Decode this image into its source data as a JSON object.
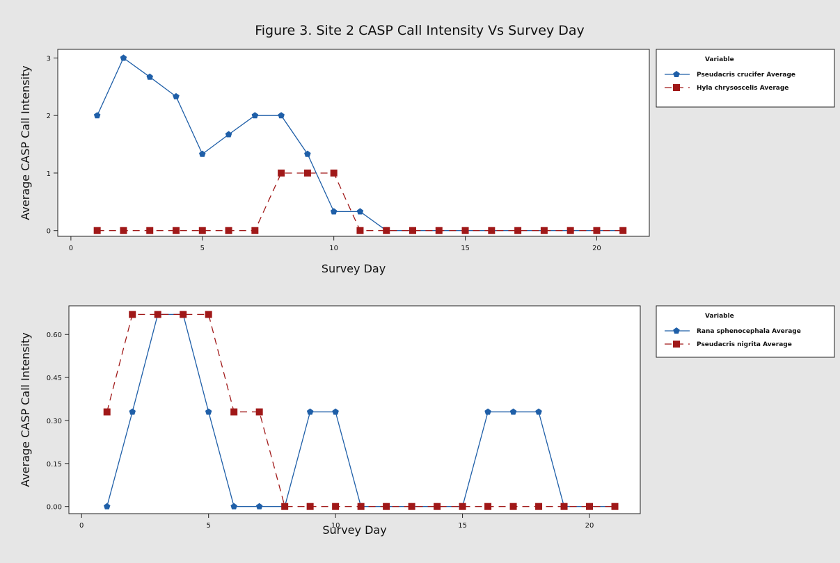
{
  "figure_title": "Figure 3. Site 2 CASP Call Intensity Vs Survey Day",
  "colors": {
    "series1": "#1f5fa8",
    "series2": "#a01818",
    "background": "#e6e6e6",
    "plot_bg": "#ffffff"
  },
  "chart_data": [
    {
      "type": "line",
      "title": "",
      "xlabel": "Survey Day",
      "ylabel": "Average CASP Call Intensity",
      "xlim": [
        -0.5,
        22
      ],
      "ylim": [
        -0.1,
        3.15
      ],
      "xticks": [
        0,
        5,
        10,
        15,
        20
      ],
      "yticks": [
        0,
        1,
        2,
        3
      ],
      "ytick_labels": [
        "0",
        "1",
        "2",
        "3"
      ],
      "grid": false,
      "legend": {
        "title": "Variable",
        "placement": "right"
      },
      "series": [
        {
          "name": "Pseudacris crucifer Average",
          "marker": "pentagon",
          "line": "solid",
          "color": "#1f5fa8",
          "x": [
            1,
            2,
            3,
            4,
            5,
            6,
            7,
            8,
            9,
            10,
            11,
            12,
            13,
            14,
            15,
            16,
            17,
            18,
            19,
            20,
            21
          ],
          "y": [
            2,
            3,
            2.67,
            2.33,
            1.33,
            1.67,
            2,
            2,
            1.33,
            0.33,
            0.33,
            0,
            0,
            0,
            0,
            0,
            0,
            0,
            0,
            0,
            0
          ]
        },
        {
          "name": "Hyla chrysoscelis Average",
          "marker": "square",
          "line": "dashed",
          "color": "#a01818",
          "x": [
            1,
            2,
            3,
            4,
            5,
            6,
            7,
            8,
            9,
            10,
            11,
            12,
            13,
            14,
            15,
            16,
            17,
            18,
            19,
            20,
            21
          ],
          "y": [
            0,
            0,
            0,
            0,
            0,
            0,
            0,
            1,
            1,
            1,
            0,
            0,
            0,
            0,
            0,
            0,
            0,
            0,
            0,
            0,
            0
          ]
        }
      ]
    },
    {
      "type": "line",
      "title": "",
      "xlabel": "Survey Day",
      "ylabel": "Average CASP Call Intensity",
      "xlim": [
        -0.5,
        22
      ],
      "ylim": [
        -0.025,
        0.7
      ],
      "xticks": [
        0,
        5,
        10,
        15,
        20
      ],
      "yticks": [
        0,
        0.15,
        0.3,
        0.45,
        0.6
      ],
      "ytick_labels": [
        "0.00",
        "0.15",
        "0.30",
        "0.45",
        "0.60"
      ],
      "grid": false,
      "legend": {
        "title": "Variable",
        "placement": "right"
      },
      "series": [
        {
          "name": "Rana sphenocephala Average",
          "marker": "pentagon",
          "line": "solid",
          "color": "#1f5fa8",
          "x": [
            1,
            2,
            3,
            4,
            5,
            6,
            7,
            8,
            9,
            10,
            11,
            12,
            13,
            14,
            15,
            16,
            17,
            18,
            19,
            20,
            21
          ],
          "y": [
            0,
            0.33,
            0.67,
            0.67,
            0.33,
            0,
            0,
            0,
            0.33,
            0.33,
            0,
            0,
            0,
            0,
            0,
            0.33,
            0.33,
            0.33,
            0,
            0,
            0
          ]
        },
        {
          "name": "Pseudacris nigrita Average",
          "marker": "square",
          "line": "dashed",
          "color": "#a01818",
          "x": [
            1,
            2,
            3,
            4,
            5,
            6,
            7,
            8,
            9,
            10,
            11,
            12,
            13,
            14,
            15,
            16,
            17,
            18,
            19,
            20,
            21
          ],
          "y": [
            0.33,
            0.67,
            0.67,
            0.67,
            0.67,
            0.33,
            0.33,
            0,
            0,
            0,
            0,
            0,
            0,
            0,
            0,
            0,
            0,
            0,
            0,
            0,
            0
          ]
        }
      ]
    }
  ]
}
